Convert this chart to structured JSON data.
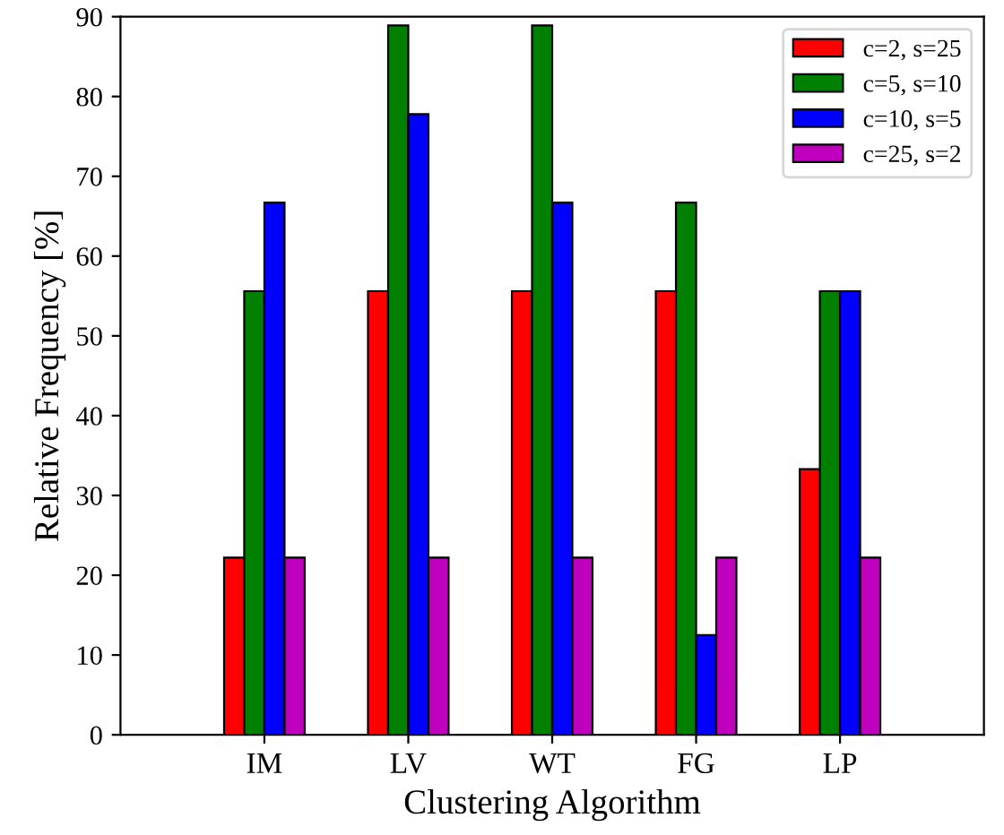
{
  "chart_data": {
    "type": "bar",
    "xlabel": "Clustering Algorithm",
    "ylabel": "Relative Frequency [%]",
    "categories": [
      "IM",
      "LV",
      "WT",
      "FG",
      "LP"
    ],
    "series": [
      {
        "name": "c=2, s=25",
        "color": "#ff0000",
        "values": [
          22.2,
          55.6,
          55.6,
          55.6,
          33.3
        ]
      },
      {
        "name": "c=5, s=10",
        "color": "#008000",
        "values": [
          55.6,
          88.9,
          88.9,
          66.7,
          55.6
        ]
      },
      {
        "name": "c=10, s=5",
        "color": "#0000ff",
        "values": [
          66.7,
          77.8,
          66.7,
          12.5,
          55.6
        ]
      },
      {
        "name": "c=25, s=2",
        "color": "#bf00bf",
        "values": [
          22.2,
          22.2,
          22.2,
          22.2,
          22.2
        ]
      }
    ],
    "ylim": [
      0,
      90
    ],
    "yticks": [
      0,
      10,
      20,
      30,
      40,
      50,
      60,
      70,
      80,
      90
    ],
    "legend": "top right",
    "grid": false
  }
}
